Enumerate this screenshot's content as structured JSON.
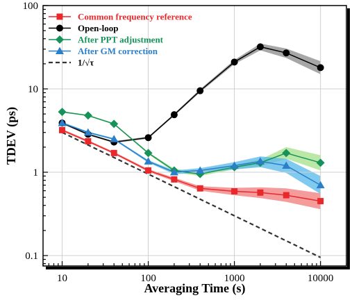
{
  "chart_data": {
    "type": "line",
    "xscale": "log",
    "yscale": "log",
    "xlim": [
      6,
      20000
    ],
    "ylim": [
      0.075,
      100
    ],
    "xlabel": "Averaging Time (s)",
    "ylabel": "TDEV (ps)",
    "xticks": [
      10,
      100,
      1000,
      10000
    ],
    "xtick_labels": [
      "10",
      "100",
      "1000",
      "10000"
    ],
    "yticks": [
      0.1,
      1,
      10,
      100
    ],
    "ytick_labels": [
      "0.1",
      "1",
      "10",
      "100"
    ],
    "grid": true,
    "legend_position": "top-left",
    "series": [
      {
        "name": "Common frequency reference",
        "color": "#e8282b",
        "band_color": "#f07b7b",
        "marker": "square",
        "x": [
          10,
          20,
          40,
          100,
          200,
          400,
          1000,
          2000,
          4000,
          10000
        ],
        "y": [
          3.2,
          2.35,
          1.7,
          1.05,
          0.82,
          0.64,
          0.59,
          0.57,
          0.53,
          0.45
        ],
        "band_low": [
          3.1,
          2.28,
          1.65,
          1.01,
          0.78,
          0.6,
          0.53,
          0.49,
          0.44,
          0.36
        ],
        "band_high": [
          3.3,
          2.42,
          1.75,
          1.09,
          0.86,
          0.68,
          0.65,
          0.66,
          0.64,
          0.56
        ]
      },
      {
        "name": "Open-loop",
        "color": "#000000",
        "band_color": "#8a8a8a",
        "marker": "circle",
        "x": [
          10,
          20,
          40,
          100,
          200,
          400,
          1000,
          2000,
          4000,
          10000
        ],
        "y": [
          3.9,
          2.85,
          2.3,
          2.6,
          4.9,
          9.5,
          21,
          32,
          27,
          18
        ],
        "band_low": [
          3.8,
          2.78,
          2.24,
          2.52,
          4.75,
          9.1,
          19.8,
          29,
          23.5,
          15
        ],
        "band_high": [
          4.0,
          2.92,
          2.36,
          2.68,
          5.05,
          9.9,
          22.2,
          35,
          30.5,
          21.5
        ]
      },
      {
        "name": "After PPT adjustment",
        "color": "#17925a",
        "band_color": "#a6e08a",
        "marker": "diamond",
        "x": [
          10,
          20,
          40,
          100,
          200,
          400,
          1000,
          2000,
          4000,
          10000
        ],
        "y": [
          5.3,
          4.8,
          3.8,
          1.7,
          1.05,
          0.95,
          1.15,
          1.3,
          1.7,
          1.3
        ],
        "band_low": [
          5.2,
          4.7,
          3.72,
          1.65,
          1.0,
          0.9,
          1.08,
          1.18,
          1.45,
          1.05
        ],
        "band_high": [
          5.4,
          4.9,
          3.88,
          1.75,
          1.1,
          1.0,
          1.22,
          1.42,
          2.0,
          1.6
        ]
      },
      {
        "name": "After GM correction",
        "color": "#2b7fc9",
        "band_color": "#55b8ea",
        "marker": "triangle",
        "x": [
          10,
          20,
          40,
          100,
          200,
          400,
          1000,
          2000,
          4000,
          10000
        ],
        "y": [
          3.9,
          3.0,
          2.5,
          1.35,
          1.0,
          1.05,
          1.2,
          1.35,
          1.2,
          0.7
        ],
        "band_low": [
          3.8,
          2.93,
          2.44,
          1.3,
          0.95,
          0.98,
          1.08,
          1.15,
          0.98,
          0.55
        ],
        "band_high": [
          4.0,
          3.07,
          2.56,
          1.4,
          1.05,
          1.12,
          1.32,
          1.55,
          1.45,
          0.9
        ]
      },
      {
        "name": "1/√τ",
        "color": "#333333",
        "marker": "none",
        "dashed": true,
        "x": [
          10,
          10000
        ],
        "y": [
          3.0,
          0.095
        ]
      }
    ]
  }
}
